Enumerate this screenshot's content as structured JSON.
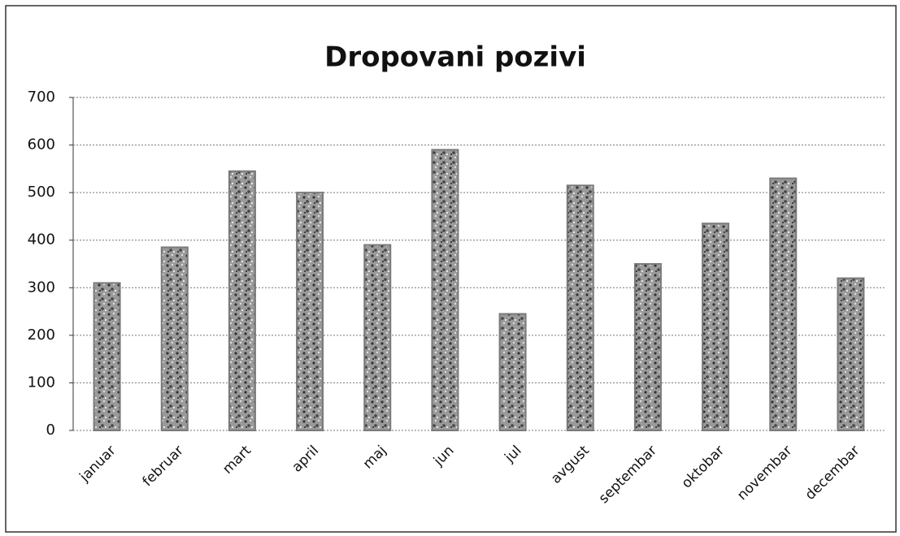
{
  "chart_data": {
    "type": "bar",
    "title": "Dropovani pozivi",
    "categories": [
      "januar",
      "februar",
      "mart",
      "april",
      "maj",
      "jun",
      "jul",
      "avgust",
      "septembar",
      "oktobar",
      "novembar",
      "decembar"
    ],
    "values": [
      310,
      385,
      545,
      500,
      390,
      590,
      245,
      515,
      350,
      435,
      530,
      320
    ],
    "color": "#7a7a7a",
    "ylim": [
      0,
      700
    ],
    "yticks": [
      0,
      100,
      200,
      300,
      400,
      500,
      600,
      700
    ],
    "grid": true
  }
}
